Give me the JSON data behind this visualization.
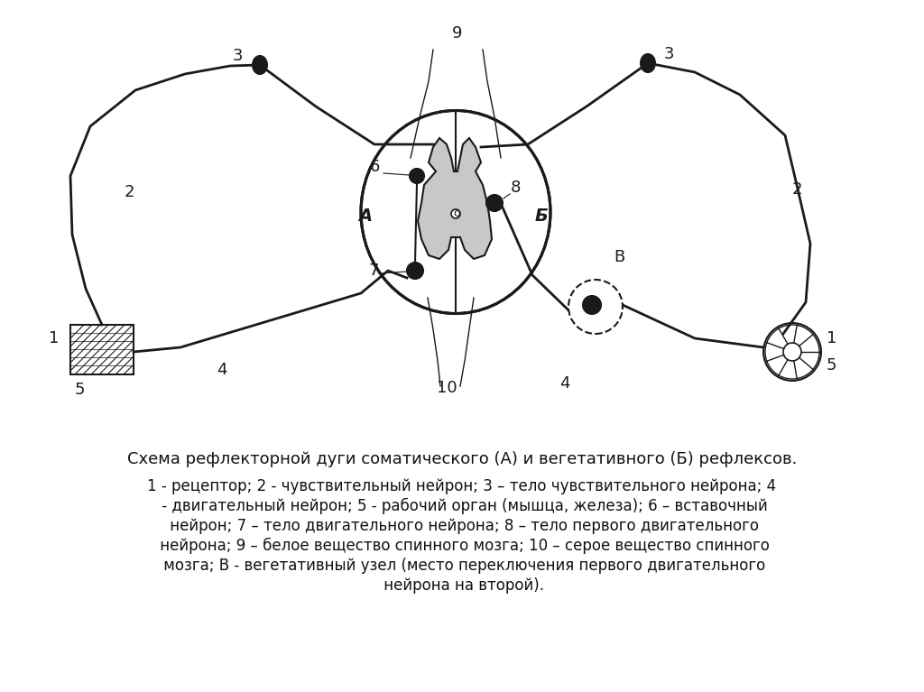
{
  "bg_color": "#ffffff",
  "fig_width": 10.24,
  "fig_height": 7.67,
  "title_text": "Схема рефлекторной дуги соматического (А) и вегетативного (Б) рефлексов.",
  "legend_line1": "1 - рецептор; 2 - чувствительный нейрон; 3 – тело чувствительного нейрона; 4",
  "legend_line2": " - двигательный нейрон; 5 - рабочий орган (мышца, железа); 6 – вставочный",
  "legend_line3": " нейрон; 7 – тело двигательного нейрона; 8 – тело первого двигательного",
  "legend_line4": " нейрона; 9 – белое вещество спинного мозга; 10 – серое вещество спинного",
  "legend_line5": " мозга; В - вегетативный узел (место переключения первого двигательного",
  "legend_line6": " нейрона на второй).",
  "line_color": "#1a1a1a",
  "gray_matter_color": "#c8c8c8",
  "dark_cell_color": "#1a1a1a"
}
